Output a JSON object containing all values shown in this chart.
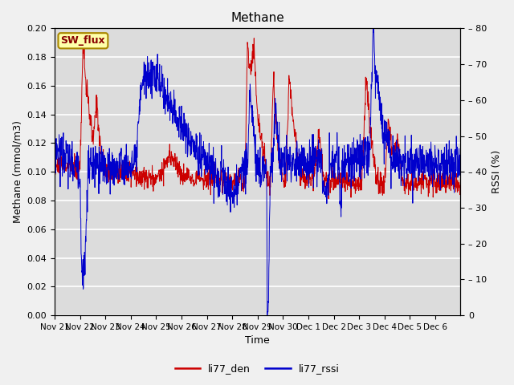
{
  "title": "Methane",
  "xlabel": "Time",
  "ylabel_left": "Methane (mmol/m3)",
  "ylabel_right": "RSSI (%)",
  "ylim_left": [
    0.0,
    0.2
  ],
  "ylim_right": [
    0,
    80
  ],
  "yticks_left": [
    0.0,
    0.02,
    0.04,
    0.06,
    0.08,
    0.1,
    0.12,
    0.14,
    0.16,
    0.18,
    0.2
  ],
  "yticks_right": [
    0,
    10,
    20,
    30,
    40,
    50,
    60,
    70,
    80
  ],
  "xtick_labels": [
    "Nov 21",
    "Nov 22",
    "Nov 23",
    "Nov 24",
    "Nov 25",
    "Nov 26",
    "Nov 27",
    "Nov 28",
    "Nov 29",
    "Nov 30",
    "Dec 1",
    "Dec 2",
    "Dec 3",
    "Dec 4",
    "Dec 5",
    "Dec 6"
  ],
  "color_den": "#cc0000",
  "color_rssi": "#0000cc",
  "legend_label_den": "li77_den",
  "legend_label_rssi": "li77_rssi",
  "sw_flux_label": "SW_flux",
  "background_color": "#dcdcdc",
  "fig_facecolor": "#f0f0f0",
  "grid_color": "#ffffff",
  "title_fontsize": 11,
  "axis_label_fontsize": 9,
  "tick_fontsize": 8,
  "legend_fontsize": 9
}
